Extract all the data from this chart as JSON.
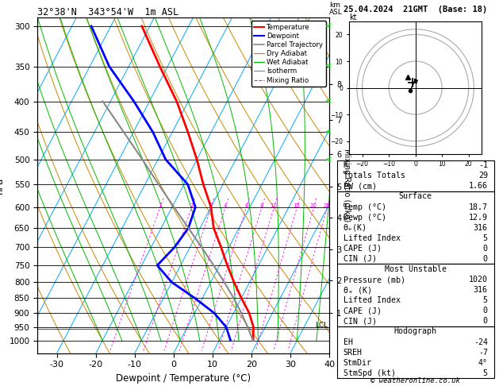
{
  "title_left": "32°38'N  343°54'W  1m ASL",
  "title_right": "25.04.2024  21GMT  (Base: 18)",
  "xlabel": "Dewpoint / Temperature (°C)",
  "ylabel_left": "hPa",
  "pressure_levels": [
    300,
    350,
    400,
    450,
    500,
    550,
    600,
    650,
    700,
    750,
    800,
    850,
    900,
    950,
    1000
  ],
  "temp_data": {
    "pressure": [
      1000,
      950,
      900,
      850,
      800,
      750,
      700,
      650,
      600,
      550,
      500,
      450,
      400,
      350,
      300
    ],
    "temp": [
      18.7,
      17.0,
      14.0,
      10.0,
      6.0,
      2.0,
      -2.0,
      -6.5,
      -10.0,
      -15.0,
      -20.0,
      -26.0,
      -33.0,
      -42.0,
      -52.0
    ]
  },
  "dewp_data": {
    "pressure": [
      1000,
      950,
      900,
      850,
      800,
      750,
      700,
      650,
      600,
      550,
      500,
      450,
      400,
      350,
      300
    ],
    "dewp": [
      12.9,
      10.0,
      5.0,
      -2.0,
      -10.0,
      -16.0,
      -14.0,
      -13.0,
      -14.0,
      -19.0,
      -28.0,
      -35.0,
      -44.0,
      -55.0,
      -65.0
    ]
  },
  "parcel_data": {
    "pressure": [
      1000,
      950,
      900,
      850,
      800,
      750,
      700,
      650,
      600,
      550,
      500,
      450,
      400
    ],
    "temp": [
      18.7,
      15.5,
      12.0,
      8.0,
      3.5,
      -1.5,
      -7.0,
      -13.0,
      -19.5,
      -26.5,
      -34.0,
      -42.5,
      -52.0
    ]
  },
  "xlim": [
    -35,
    40
  ],
  "pmin": 290,
  "pmax": 1050,
  "skew_factor": 35.0,
  "temp_color": "#ff0000",
  "dewp_color": "#0000ff",
  "parcel_color": "#888888",
  "isotherm_color": "#00aaff",
  "dry_adiabat_color": "#cc8800",
  "wet_adiabat_color": "#00bb00",
  "mixing_ratio_color": "#ff00ff",
  "lcl_pressure": 957,
  "hodograph_u": [
    -2.0,
    -1.5,
    -1.0,
    -0.5,
    0.0
  ],
  "hodograph_v": [
    -1.0,
    0.0,
    1.0,
    2.0,
    3.0
  ],
  "stats_K": -1,
  "stats_TT": 29,
  "stats_PW": 1.66,
  "surf_temp": 18.7,
  "surf_dewp": 12.9,
  "surf_thetae": 316,
  "surf_li": 5,
  "surf_cape": 0,
  "surf_cin": 0,
  "mu_pres": 1020,
  "mu_thetae": 316,
  "mu_li": 5,
  "mu_cape": 0,
  "mu_cin": 0,
  "hodo_eh": -24,
  "hodo_sreh": -7,
  "hodo_stmdir": "4°",
  "hodo_stmspd": 5,
  "mixing_ratio_vals": [
    1,
    2,
    3,
    4,
    6,
    8,
    10,
    15,
    20,
    25
  ],
  "km_ticks": [
    1,
    2,
    3,
    4,
    5,
    6,
    7,
    8
  ],
  "km_pressures": [
    900,
    795,
    705,
    625,
    555,
    490,
    430,
    375
  ]
}
